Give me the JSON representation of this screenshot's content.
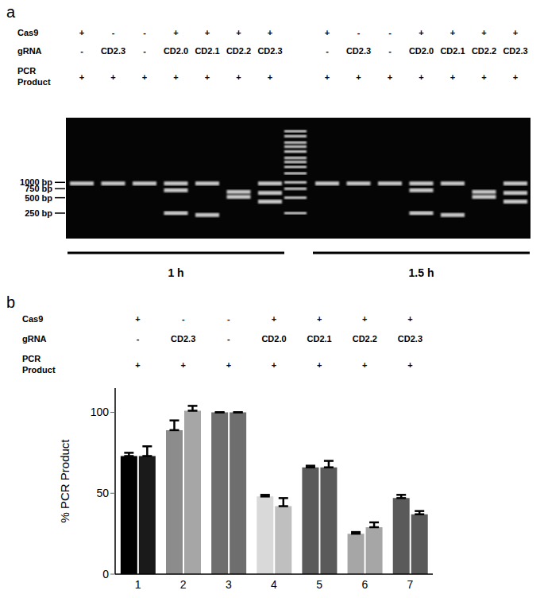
{
  "panel_a": {
    "label": "a",
    "rows": [
      {
        "label": "Cas9",
        "values": [
          "+",
          "-",
          "-",
          "+",
          "+",
          "+",
          "+"
        ]
      },
      {
        "label": "gRNA",
        "values": [
          "-",
          "CD2.3",
          "-",
          "CD2.0",
          "CD2.1",
          "CD2.2",
          "CD2.3"
        ]
      },
      {
        "label": "PCR Product",
        "values": [
          "+",
          "+",
          "+",
          "+",
          "+",
          "+",
          "+"
        ]
      }
    ],
    "markers": [
      {
        "value": 1000,
        "label": "1000 bp"
      },
      {
        "value": 750,
        "label": "750 bp"
      },
      {
        "value": 500,
        "label": "500 bp"
      },
      {
        "value": 250,
        "label": "250 bp"
      }
    ],
    "ladder_bp": [
      10000,
      8000,
      6000,
      5000,
      4000,
      3000,
      2500,
      2000,
      1500,
      1000,
      750,
      500,
      250
    ],
    "groups": [
      {
        "time": "1 h",
        "lane_bands_bp": [
          [
            950
          ],
          [
            950
          ],
          [
            950
          ],
          [
            950,
            700,
            250
          ],
          [
            950,
            230
          ],
          [
            650,
            520
          ],
          [
            950,
            620,
            420
          ]
        ]
      },
      {
        "time": "1.5 h",
        "lane_bands_bp": [
          [
            950
          ],
          [
            950
          ],
          [
            950
          ],
          [
            950,
            700,
            250
          ],
          [
            950,
            230
          ],
          [
            650,
            520
          ],
          [
            950,
            620,
            420
          ]
        ]
      }
    ]
  },
  "chart_data": {
    "label": "b",
    "type": "bar",
    "categories": [
      "1",
      "2",
      "3",
      "4",
      "5",
      "6",
      "7"
    ],
    "conditions": [
      {
        "label": "Cas9",
        "values": [
          "+",
          "-",
          "-",
          "+",
          "+",
          "+",
          "+"
        ]
      },
      {
        "label": "gRNA",
        "values": [
          "-",
          "CD2.3",
          "-",
          "CD2.0",
          "CD2.1",
          "CD2.2",
          "CD2.3"
        ]
      },
      {
        "label": "PCR Product",
        "values": [
          "+",
          "+",
          "+",
          "+",
          "+",
          "+",
          "+"
        ]
      }
    ],
    "y_label": "% PCR Product",
    "ylim": [
      0,
      115
    ],
    "yticks": [
      0,
      50,
      100
    ],
    "series": [
      {
        "values": [
          73,
          89,
          100,
          48,
          66,
          25,
          47
        ],
        "errors": [
          2,
          6,
          0,
          1,
          1,
          1,
          2
        ],
        "colors": [
          "#000000",
          "#8c8c8c",
          "#6e6e6e",
          "#d9d9d9",
          "#5a5a5a",
          "#a6a6a6",
          "#5a5a5a"
        ]
      },
      {
        "values": [
          73,
          101,
          100,
          42,
          66,
          29,
          37
        ],
        "errors": [
          6,
          3,
          0,
          5,
          4,
          3,
          2
        ],
        "colors": [
          "#1a1a1a",
          "#a6a6a6",
          "#6e6e6e",
          "#bfbfbf",
          "#5a5a5a",
          "#a6a6a6",
          "#5a5a5a"
        ]
      }
    ]
  }
}
